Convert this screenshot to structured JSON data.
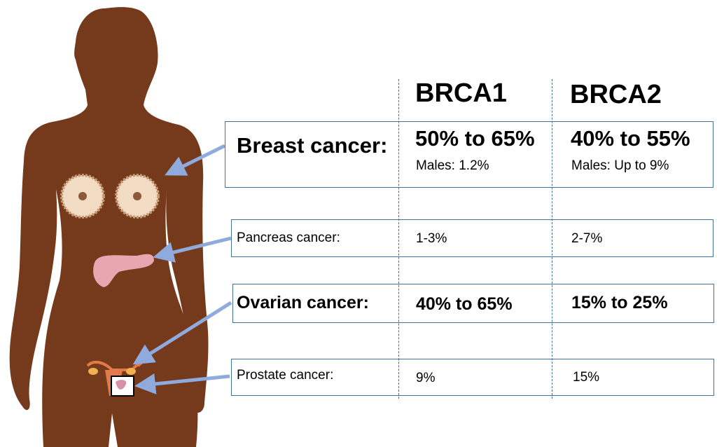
{
  "colors": {
    "silhouette": "#753a1c",
    "arrow": "#8faadc",
    "box_border": "#41719c",
    "gland": "#f2dcc4",
    "pancreas": "#e8a7b0",
    "uterus": "#e07a4a"
  },
  "headers": [
    "BRCA1",
    "BRCA2"
  ],
  "rows": [
    {
      "label": "Breast cancer:",
      "brca1": "50% to 65%",
      "brca1_note": "Males: 1.2%",
      "brca2": "40% to 55%",
      "brca2_note": "Males: Up to 9%"
    },
    {
      "label": "Pancreas cancer:",
      "brca1": "1-3%",
      "brca2": "2-7%"
    },
    {
      "label": "Ovarian cancer:",
      "brca1": "40% to 65%",
      "brca2": "15% to 25%"
    },
    {
      "label": "Prostate cancer:",
      "brca1": "9%",
      "brca2": "15%"
    }
  ]
}
